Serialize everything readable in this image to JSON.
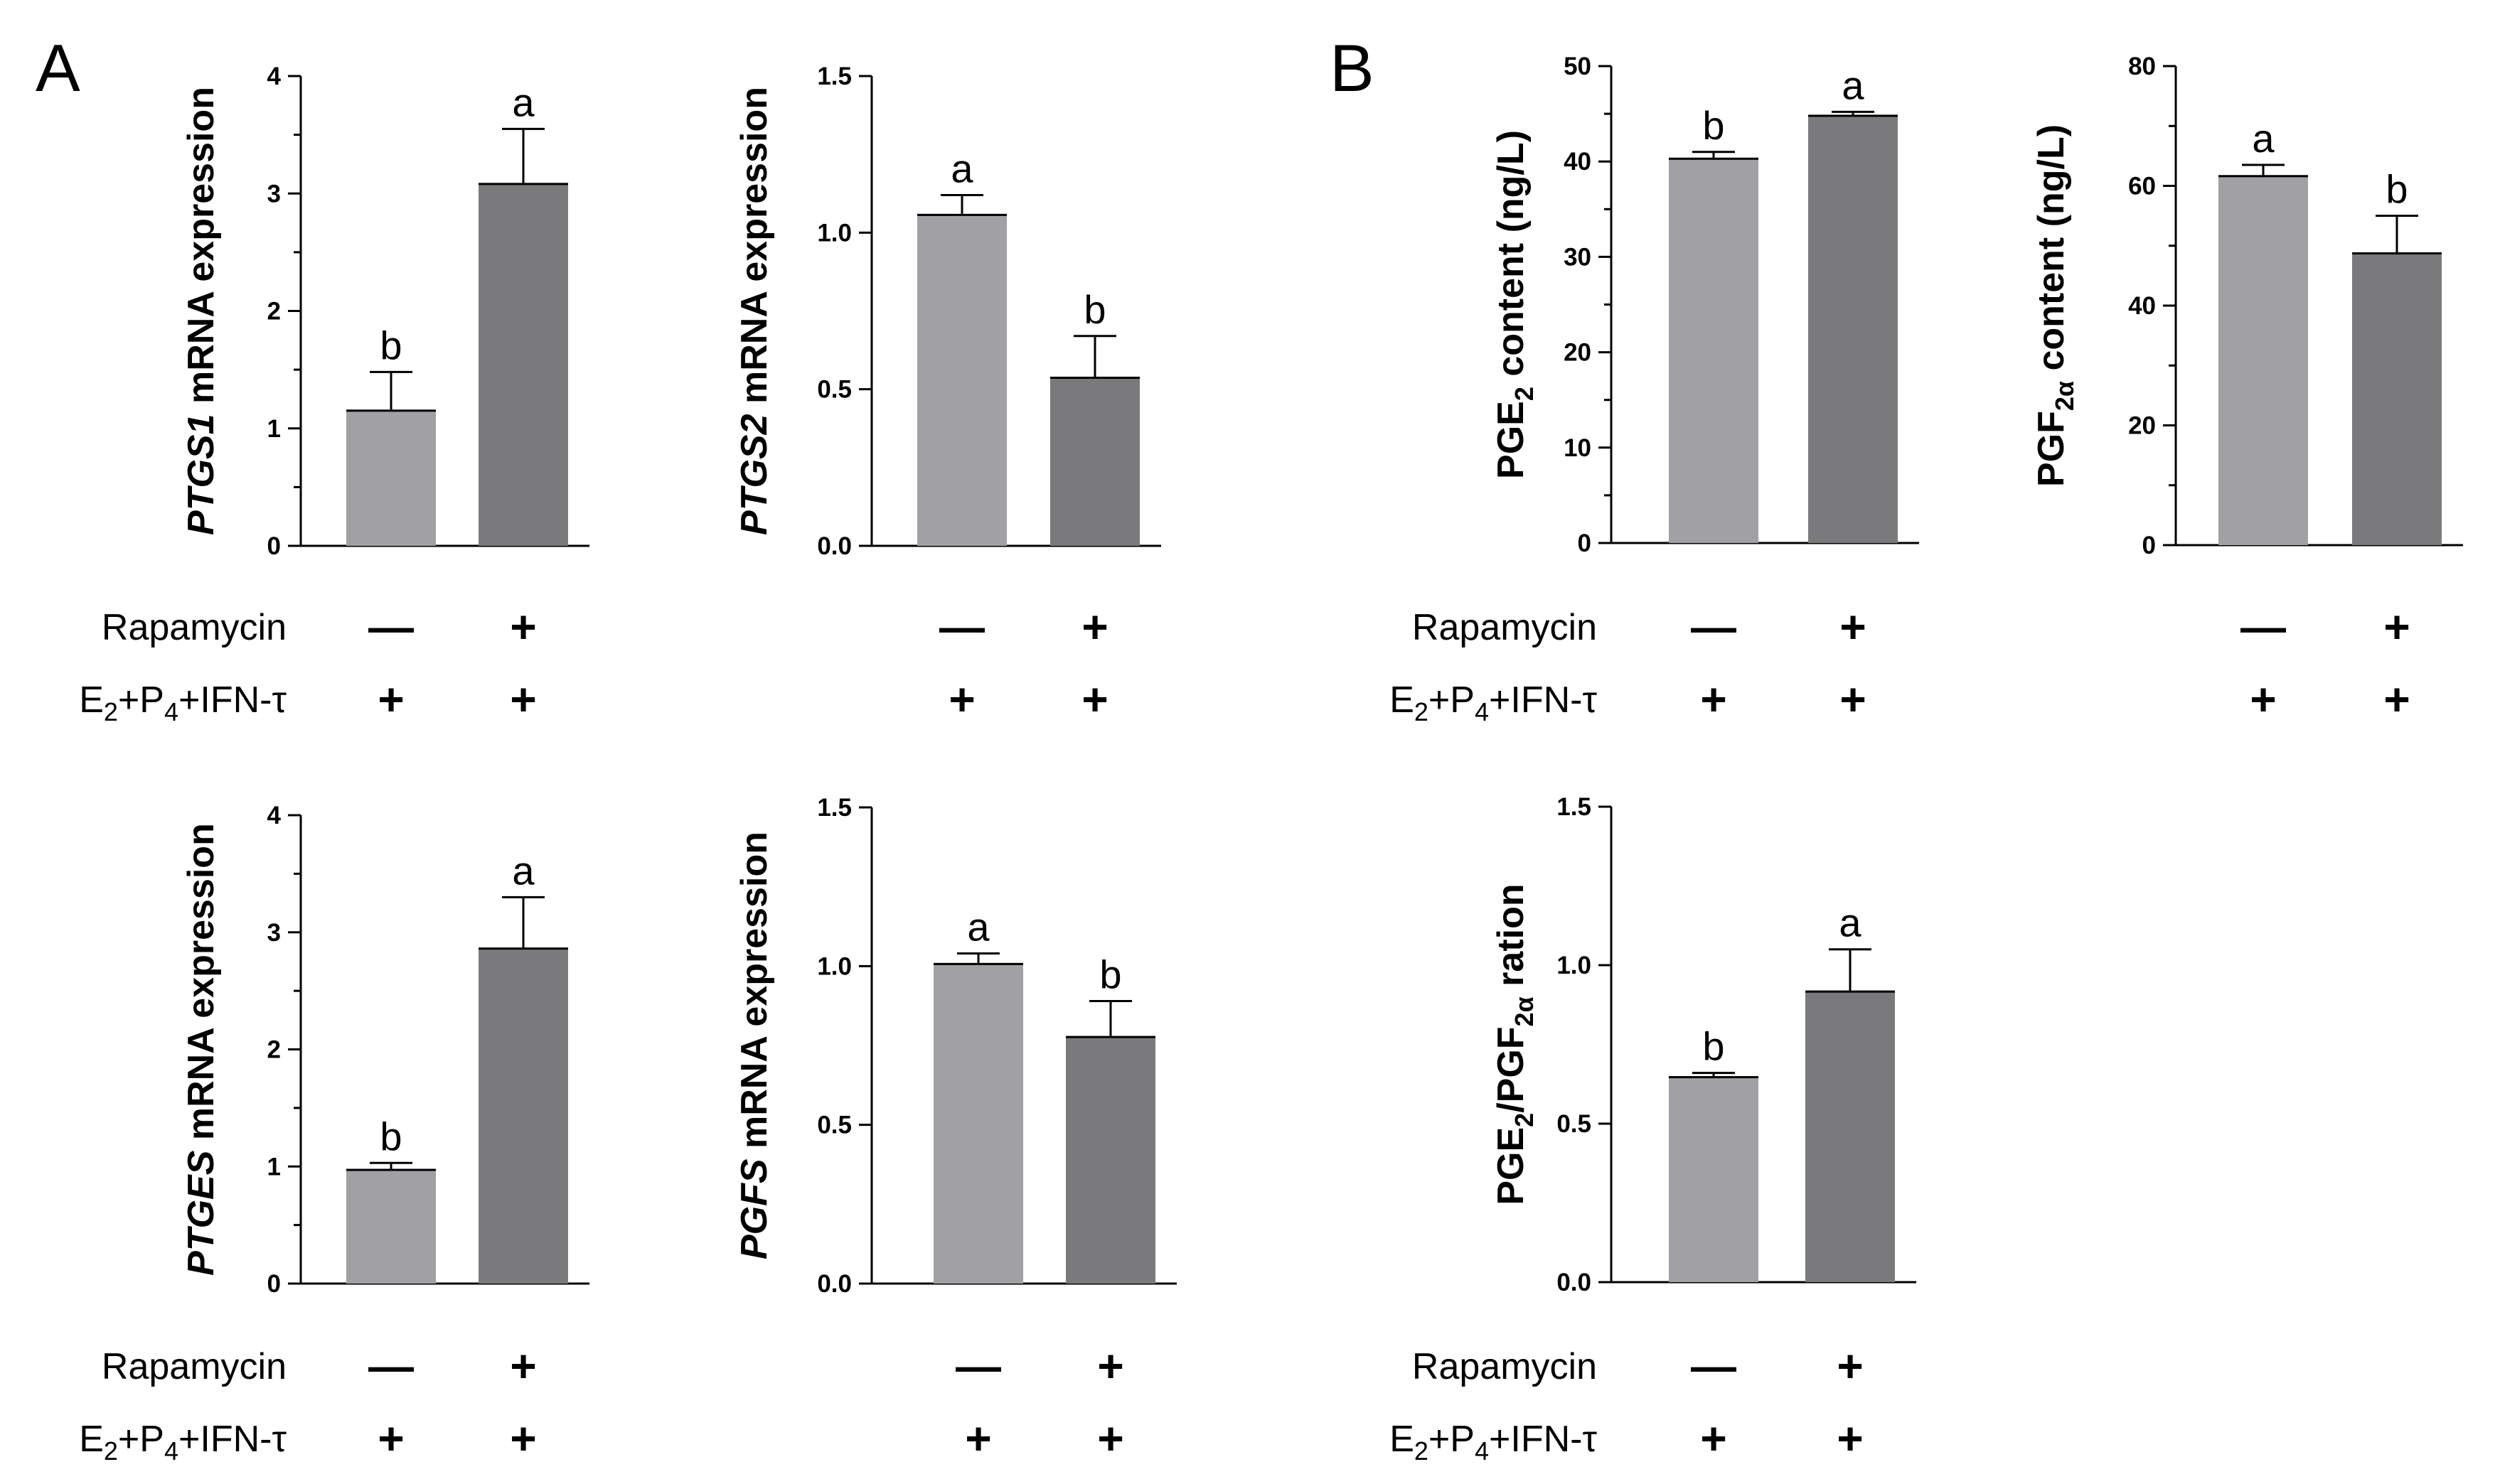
{
  "panels": {
    "A": "A",
    "B": "B"
  },
  "conditions": {
    "rapamycin": "Rapamycin",
    "treatment": "E2+P4+IFN-τ",
    "treatment_parts": {
      "e": "E",
      "sub2": "2",
      "p": "+P",
      "sub4": "4",
      "rest": "+IFN-τ"
    },
    "minus": "—",
    "plus": "+"
  },
  "colors": {
    "control": "#a0a0a5",
    "rapamycin": "#7a7a7c",
    "axis": "#000000"
  },
  "chart_data": [
    {
      "id": "ptgs1",
      "type": "bar",
      "title": "",
      "xlabel": "",
      "ylabel": "PTGS1 mRNA expression",
      "ylabel_parts": [
        {
          "text": "PTGS1",
          "italic": true
        },
        {
          "text": " mRNA expression"
        }
      ],
      "categories": [
        "Rapamycin −",
        "Rapamycin +"
      ],
      "values": [
        1.16,
        3.09
      ],
      "errors": [
        0.32,
        0.46
      ],
      "significance": [
        "b",
        "a"
      ],
      "ylim": [
        0,
        4
      ],
      "yticks": [
        0,
        1,
        2,
        3,
        4
      ],
      "ytick_labels": [
        "0",
        "1",
        "2",
        "3",
        "4"
      ],
      "minor_ticks": true,
      "rapamycin": [
        "—",
        "+"
      ],
      "treatment": [
        "+",
        "+"
      ]
    },
    {
      "id": "ptgs2",
      "type": "bar",
      "title": "",
      "xlabel": "",
      "ylabel": "PTGS2 mRNA expression",
      "ylabel_parts": [
        {
          "text": "PTGS2",
          "italic": true
        },
        {
          "text": " mRNA expression"
        }
      ],
      "categories": [
        "Rapamycin −",
        "Rapamycin +"
      ],
      "values": [
        1.06,
        0.54
      ],
      "errors": [
        0.06,
        0.13
      ],
      "significance": [
        "a",
        "b"
      ],
      "ylim": [
        0,
        1.5
      ],
      "yticks": [
        0,
        0.5,
        1.0,
        1.5
      ],
      "ytick_labels": [
        "0.0",
        "0.5",
        "1.0",
        "1.5"
      ],
      "minor_ticks": false,
      "rapamycin": [
        "—",
        "+"
      ],
      "treatment": [
        "+",
        "+"
      ]
    },
    {
      "id": "ptges",
      "type": "bar",
      "title": "",
      "xlabel": "",
      "ylabel": "PTGES mRNA expression",
      "ylabel_parts": [
        {
          "text": "PTGES",
          "italic": true
        },
        {
          "text": " mRNA expression"
        }
      ],
      "categories": [
        "Rapamycin −",
        "Rapamycin +"
      ],
      "values": [
        0.98,
        2.87
      ],
      "errors": [
        0.05,
        0.43
      ],
      "significance": [
        "b",
        "a"
      ],
      "ylim": [
        0,
        4
      ],
      "yticks": [
        0,
        1,
        2,
        3,
        4
      ],
      "ytick_labels": [
        "0",
        "1",
        "2",
        "3",
        "4"
      ],
      "minor_ticks": true,
      "rapamycin": [
        "—",
        "+"
      ],
      "treatment": [
        "+",
        "+"
      ]
    },
    {
      "id": "pgfs",
      "type": "bar",
      "title": "",
      "xlabel": "",
      "ylabel": "PGFS mRNA expression",
      "ylabel_parts": [
        {
          "text": "PGFS",
          "italic": true
        },
        {
          "text": " mRNA expression"
        }
      ],
      "categories": [
        "Rapamycin −",
        "Rapamycin +"
      ],
      "values": [
        1.01,
        0.78
      ],
      "errors": [
        0.03,
        0.11
      ],
      "significance": [
        "a",
        "b"
      ],
      "ylim": [
        0,
        1.5
      ],
      "yticks": [
        0,
        0.5,
        1.0,
        1.5
      ],
      "ytick_labels": [
        "0.0",
        "0.5",
        "1.0",
        "1.5"
      ],
      "minor_ticks": false,
      "rapamycin": [
        "—",
        "+"
      ],
      "treatment": [
        "+",
        "+"
      ]
    },
    {
      "id": "pge2",
      "type": "bar",
      "title": "",
      "xlabel": "",
      "ylabel": "PGE2 content (ng/L)",
      "ylabel_parts": [
        {
          "text": "PGE"
        },
        {
          "text": "2",
          "sub": true
        },
        {
          "text": " content (ng/L)"
        }
      ],
      "categories": [
        "Rapamycin −",
        "Rapamycin +"
      ],
      "values": [
        40.4,
        44.9
      ],
      "errors": [
        0.6,
        0.3
      ],
      "significance": [
        "b",
        "a"
      ],
      "ylim": [
        0,
        50
      ],
      "yticks": [
        0,
        10,
        20,
        30,
        40,
        50
      ],
      "ytick_labels": [
        "0",
        "10",
        "20",
        "30",
        "40",
        "50"
      ],
      "minor_ticks": true,
      "rapamycin": [
        "—",
        "+"
      ],
      "treatment": [
        "+",
        "+"
      ]
    },
    {
      "id": "pgf2a",
      "type": "bar",
      "title": "",
      "xlabel": "",
      "ylabel": "PGF2α content (ng/L)",
      "ylabel_parts": [
        {
          "text": "PGF"
        },
        {
          "text": "2α",
          "sub": true
        },
        {
          "text": " content (ng/L)"
        }
      ],
      "categories": [
        "Rapamycin −",
        "Rapamycin +"
      ],
      "values": [
        61.8,
        48.9
      ],
      "errors": [
        1.7,
        6.1
      ],
      "significance": [
        "a",
        "b"
      ],
      "ylim": [
        0,
        80
      ],
      "yticks": [
        0,
        20,
        40,
        60,
        80
      ],
      "ytick_labels": [
        "0",
        "20",
        "40",
        "60",
        "80"
      ],
      "minor_ticks": true,
      "rapamycin": [
        "—",
        "+"
      ],
      "treatment": [
        "+",
        "+"
      ]
    },
    {
      "id": "ratio",
      "type": "bar",
      "title": "",
      "xlabel": "",
      "ylabel": "PGE2/PGF2α ration",
      "ylabel_parts": [
        {
          "text": "PGE"
        },
        {
          "text": "2",
          "sub": true
        },
        {
          "text": "/PGF"
        },
        {
          "text": "2α",
          "sub": true
        },
        {
          "text": " ration"
        }
      ],
      "categories": [
        "Rapamycin −",
        "Rapamycin +"
      ],
      "values": [
        0.65,
        0.92
      ],
      "errors": [
        0.01,
        0.13
      ],
      "significance": [
        "b",
        "a"
      ],
      "ylim": [
        0,
        1.5
      ],
      "yticks": [
        0,
        0.5,
        1.0,
        1.5
      ],
      "ytick_labels": [
        "0.0",
        "0.5",
        "1.0",
        "1.5"
      ],
      "minor_ticks": false,
      "rapamycin": [
        "—",
        "+"
      ],
      "treatment": [
        "+",
        "+"
      ]
    }
  ]
}
